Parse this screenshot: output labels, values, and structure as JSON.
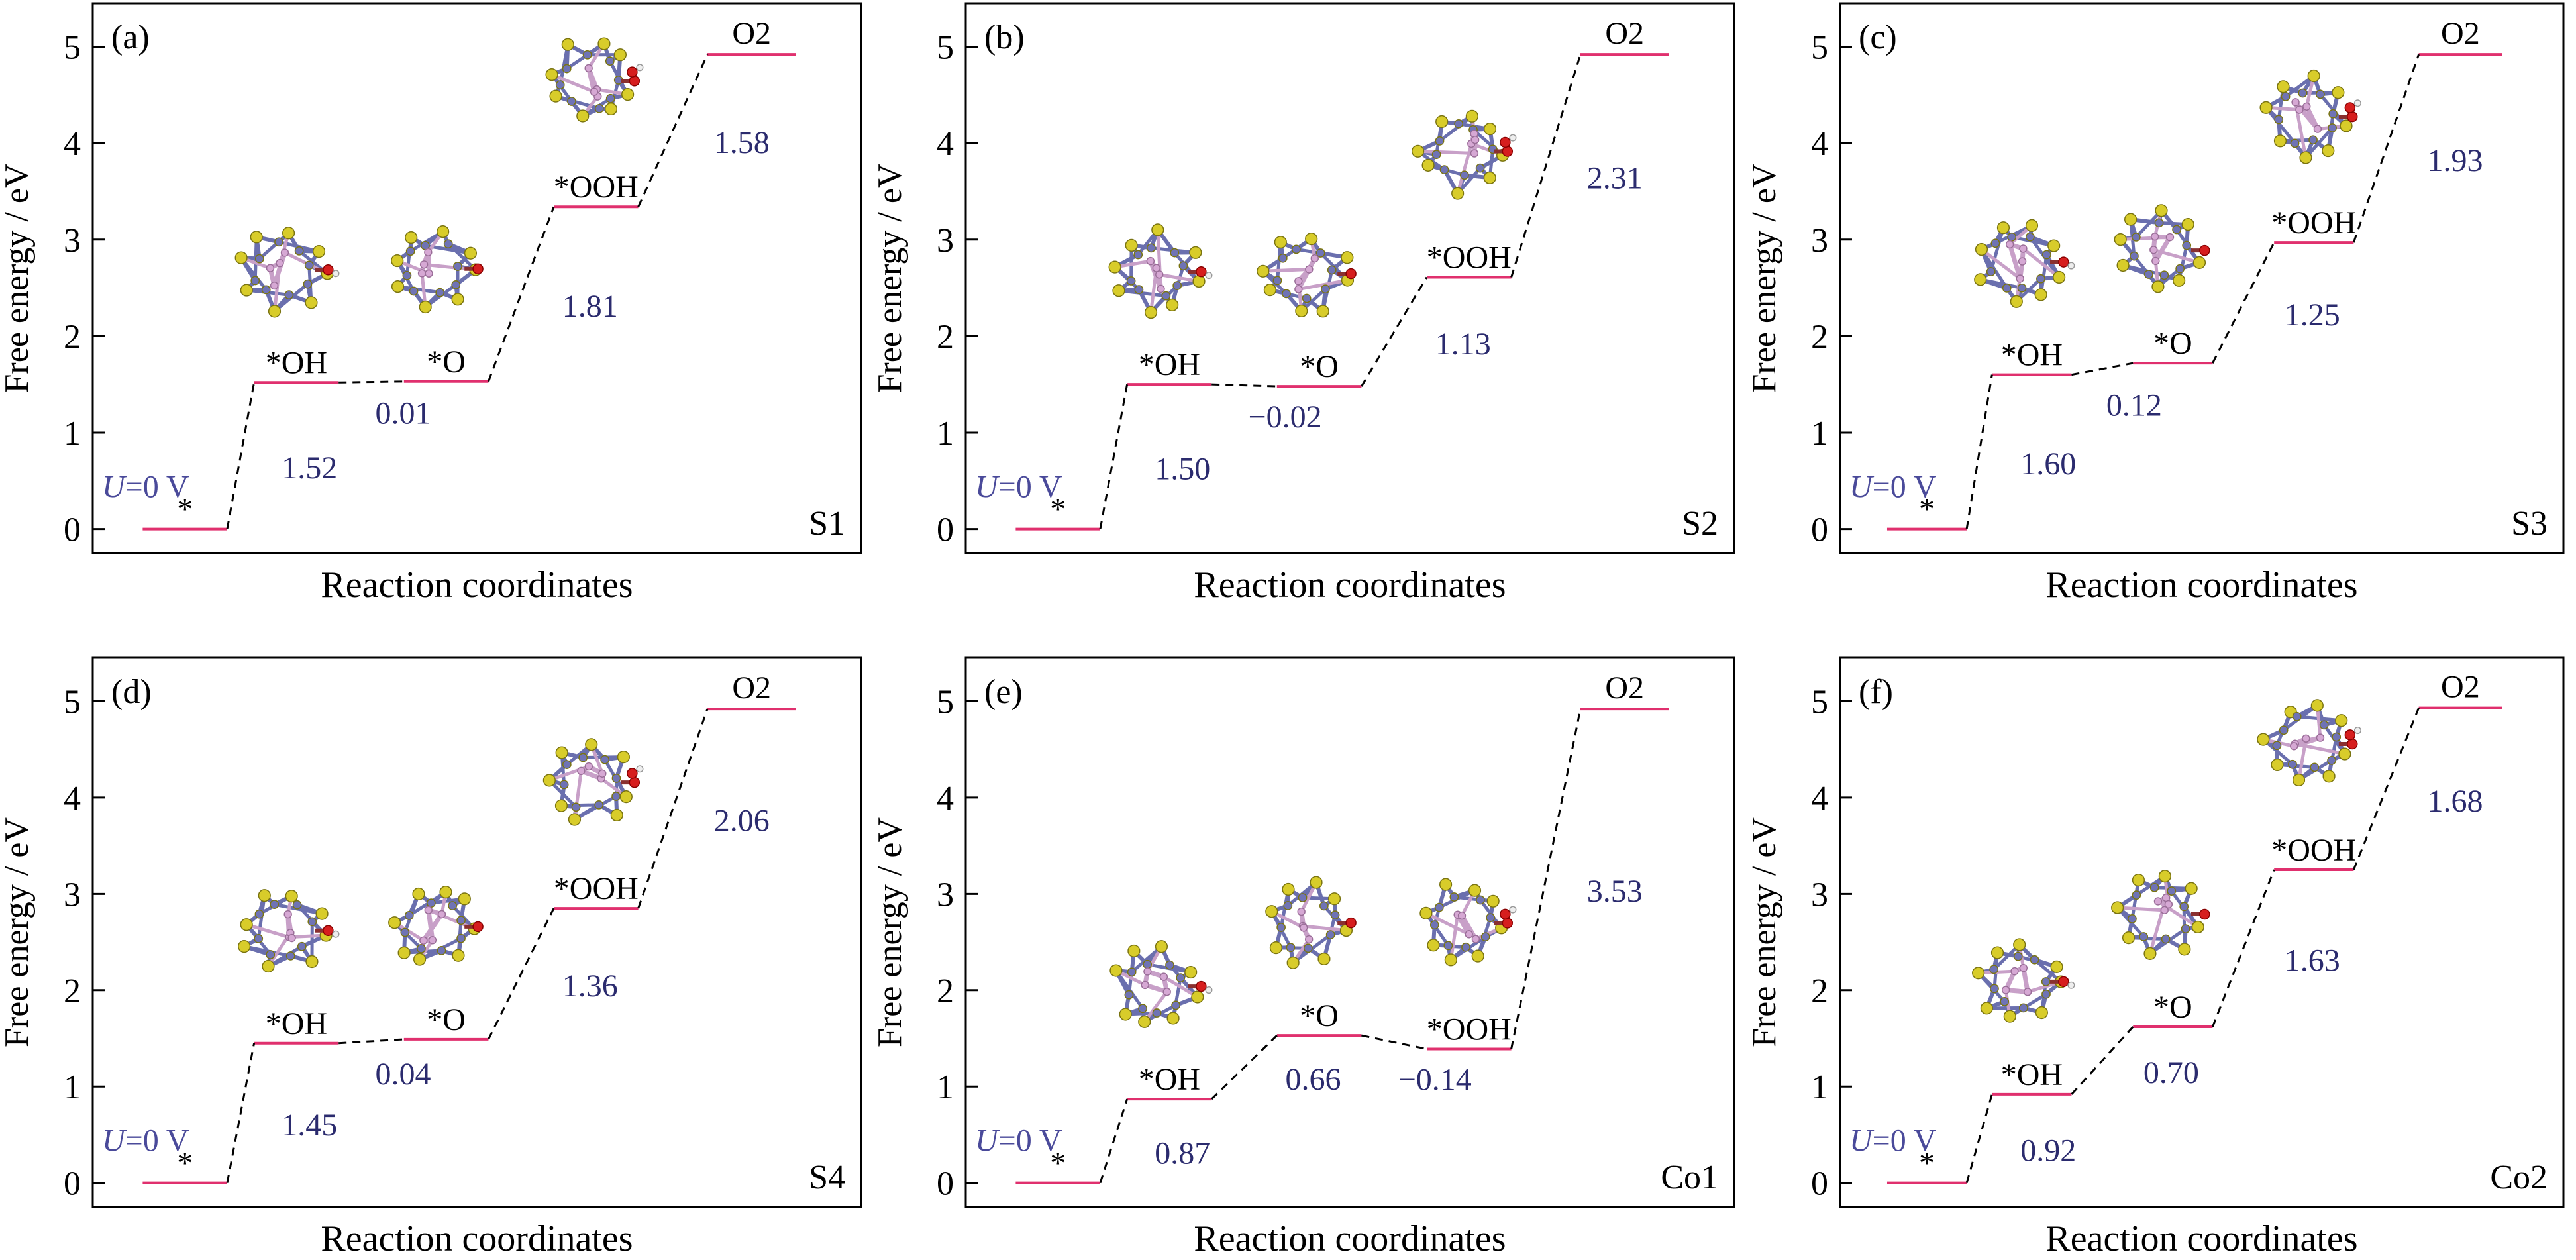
{
  "figure": {
    "colors": {
      "level_line": "#e0306e",
      "connector": "#000000",
      "value_text": "#2b2b6e",
      "potential_text": "#4a4a9a",
      "axis": "#000000",
      "atom_yellow": "#d8cc2a",
      "atom_blue": "#6f73b5",
      "atom_pink": "#d6a8d4",
      "atom_red": "#d61e1e",
      "atom_white": "#eeeeee"
    }
  },
  "chart_data": [
    {
      "type": "energy-profile",
      "panel": "(a)",
      "sample": "S1",
      "ylabel": "Free energy / eV",
      "xlabel": "Reaction coordinates",
      "ylim": [
        -0.25,
        5.45
      ],
      "yticks": [
        "0",
        "1",
        "2",
        "3",
        "4",
        "5"
      ],
      "potential": "U=0 V",
      "potential_var": "U",
      "potential_rest": "=0 V",
      "steps": [
        {
          "label": "*",
          "energy": 0.0
        },
        {
          "label": "*OH",
          "energy": 1.52
        },
        {
          "label": "*O",
          "energy": 1.53
        },
        {
          "label": "*OOH",
          "energy": 3.34
        },
        {
          "label": "O2",
          "energy": 4.92
        }
      ],
      "deltas": [
        "1.52",
        "0.01",
        "1.81",
        "1.58"
      ],
      "structures": [
        {
          "step": 1,
          "adsorbate": "OH"
        },
        {
          "step": 2,
          "adsorbate": "O"
        },
        {
          "step": 3,
          "adsorbate": "OOH"
        }
      ]
    },
    {
      "type": "energy-profile",
      "panel": "(b)",
      "sample": "S2",
      "ylabel": "Free energy / eV",
      "xlabel": "Reaction coordinates",
      "ylim": [
        -0.25,
        5.45
      ],
      "yticks": [
        "0",
        "1",
        "2",
        "3",
        "4",
        "5"
      ],
      "potential": "U=0 V",
      "potential_var": "U",
      "potential_rest": "=0 V",
      "steps": [
        {
          "label": "*",
          "energy": 0.0
        },
        {
          "label": "*OH",
          "energy": 1.5
        },
        {
          "label": "*O",
          "energy": 1.48
        },
        {
          "label": "*OOH",
          "energy": 2.61
        },
        {
          "label": "O2",
          "energy": 4.92
        }
      ],
      "deltas": [
        "1.50",
        "−0.02",
        "1.13",
        "2.31"
      ],
      "structures": [
        {
          "step": 1,
          "adsorbate": "OH"
        },
        {
          "step": 2,
          "adsorbate": "O"
        },
        {
          "step": 3,
          "adsorbate": "OOH"
        }
      ]
    },
    {
      "type": "energy-profile",
      "panel": "(c)",
      "sample": "S3",
      "ylabel": "Free energy / eV",
      "xlabel": "Reaction coordinates",
      "ylim": [
        -0.25,
        5.45
      ],
      "yticks": [
        "0",
        "1",
        "2",
        "3",
        "4",
        "5"
      ],
      "potential": "U=0 V",
      "potential_var": "U",
      "potential_rest": "=0 V",
      "steps": [
        {
          "label": "*",
          "energy": 0.0
        },
        {
          "label": "*OH",
          "energy": 1.6
        },
        {
          "label": "*O",
          "energy": 1.72
        },
        {
          "label": "*OOH",
          "energy": 2.97
        },
        {
          "label": "O2",
          "energy": 4.92
        }
      ],
      "deltas": [
        "1.60",
        "0.12",
        "1.25",
        "1.93"
      ],
      "structures": [
        {
          "step": 1,
          "adsorbate": "OH"
        },
        {
          "step": 2,
          "adsorbate": "O"
        },
        {
          "step": 3,
          "adsorbate": "OOH"
        }
      ]
    },
    {
      "type": "energy-profile",
      "panel": "(d)",
      "sample": "S4",
      "ylabel": "Free energy / eV",
      "xlabel": "Reaction coordinates",
      "ylim": [
        -0.25,
        5.45
      ],
      "yticks": [
        "0",
        "1",
        "2",
        "3",
        "4",
        "5"
      ],
      "potential": "U=0 V",
      "potential_var": "U",
      "potential_rest": "=0 V",
      "steps": [
        {
          "label": "*",
          "energy": 0.0
        },
        {
          "label": "*OH",
          "energy": 1.45
        },
        {
          "label": "*O",
          "energy": 1.49
        },
        {
          "label": "*OOH",
          "energy": 2.85
        },
        {
          "label": "O2",
          "energy": 4.92
        }
      ],
      "deltas": [
        "1.45",
        "0.04",
        "1.36",
        "2.06"
      ],
      "structures": [
        {
          "step": 1,
          "adsorbate": "OH"
        },
        {
          "step": 2,
          "adsorbate": "O"
        },
        {
          "step": 3,
          "adsorbate": "OOH"
        }
      ]
    },
    {
      "type": "energy-profile",
      "panel": "(e)",
      "sample": "Co1",
      "ylabel": "Free energy / eV",
      "xlabel": "Reaction coordinates",
      "ylim": [
        -0.25,
        5.45
      ],
      "yticks": [
        "0",
        "1",
        "2",
        "3",
        "4",
        "5"
      ],
      "potential": "U=0 V",
      "potential_var": "U",
      "potential_rest": "=0 V",
      "steps": [
        {
          "label": "*",
          "energy": 0.0
        },
        {
          "label": "*OH",
          "energy": 0.87
        },
        {
          "label": "*O",
          "energy": 1.53
        },
        {
          "label": "*OOH",
          "energy": 1.39
        },
        {
          "label": "O2",
          "energy": 4.92
        }
      ],
      "deltas": [
        "0.87",
        "0.66",
        "−0.14",
        "3.53"
      ],
      "structures": [
        {
          "step": 1,
          "adsorbate": "OH"
        },
        {
          "step": 2,
          "adsorbate": "O"
        },
        {
          "step": 3,
          "adsorbate": "OOH"
        }
      ]
    },
    {
      "type": "energy-profile",
      "panel": "(f)",
      "sample": "Co2",
      "ylabel": "Free energy / eV",
      "xlabel": "Reaction coordinates",
      "ylim": [
        -0.25,
        5.45
      ],
      "yticks": [
        "0",
        "1",
        "2",
        "3",
        "4",
        "5"
      ],
      "potential": "U=0 V",
      "potential_var": "U",
      "potential_rest": "=0 V",
      "steps": [
        {
          "label": "*",
          "energy": 0.0
        },
        {
          "label": "*OH",
          "energy": 0.92
        },
        {
          "label": "*O",
          "energy": 1.62
        },
        {
          "label": "*OOH",
          "energy": 3.25
        },
        {
          "label": "O2",
          "energy": 4.93
        }
      ],
      "deltas": [
        "0.92",
        "0.70",
        "1.63",
        "1.68"
      ],
      "structures": [
        {
          "step": 1,
          "adsorbate": "OH"
        },
        {
          "step": 2,
          "adsorbate": "O"
        },
        {
          "step": 3,
          "adsorbate": "OOH"
        }
      ]
    }
  ]
}
